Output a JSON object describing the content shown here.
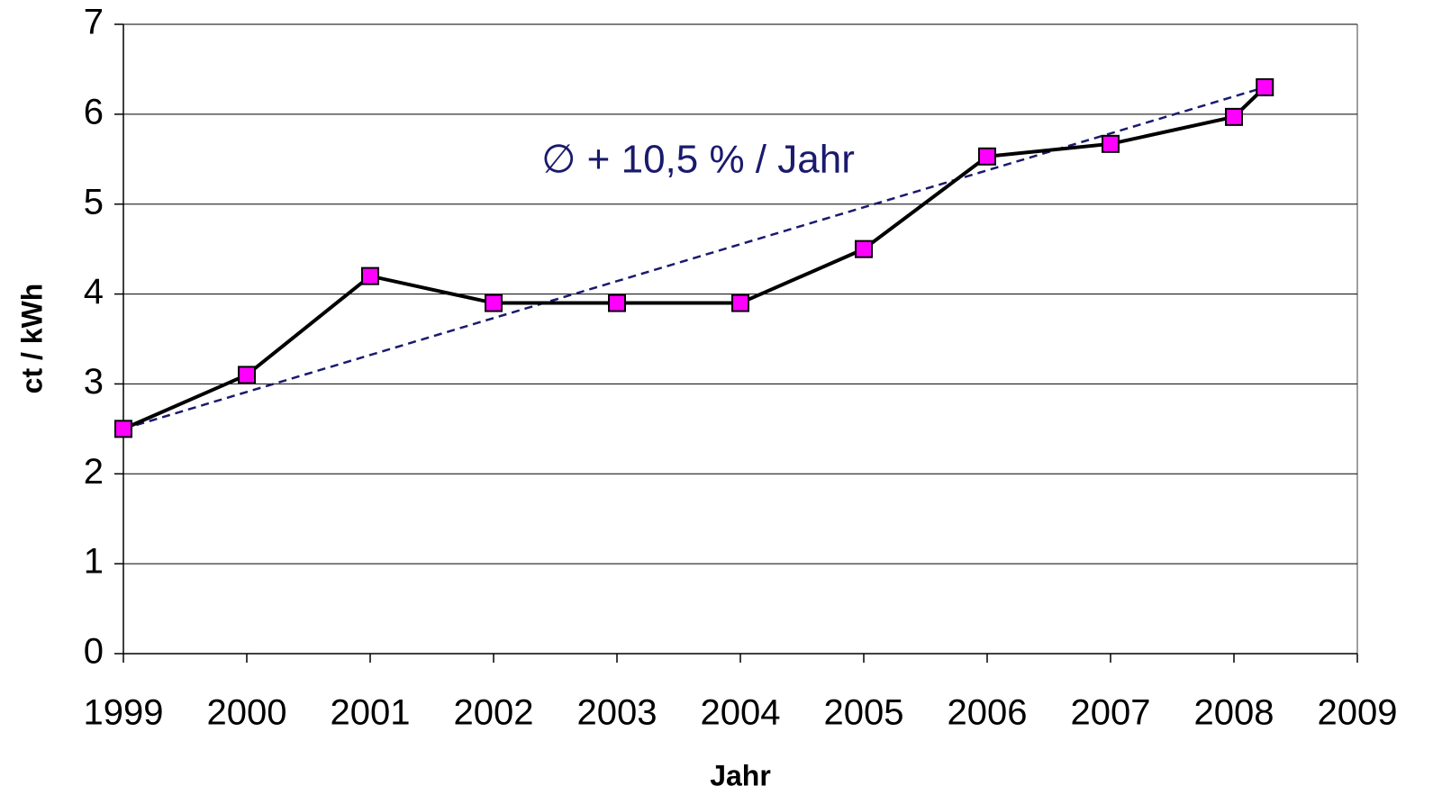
{
  "chart_data": {
    "type": "line",
    "x_label": "Jahr",
    "y_label": "ct / kWh",
    "annotation": "∅ + 10,5 % / Jahr",
    "series": [
      {
        "color": "#000000",
        "marker_color": "#ff00ff",
        "style": "solid",
        "marker": "square",
        "x": [
          1999,
          2000,
          2001,
          2002,
          2003,
          2004,
          2005,
          2006,
          2007,
          2008,
          2008.25
        ],
        "values": [
          2.5,
          3.1,
          4.2,
          3.9,
          3.9,
          3.9,
          4.5,
          5.53,
          5.67,
          5.97,
          6.3
        ]
      },
      {
        "color": "#1a1a6e",
        "style": "dashed",
        "marker": "none",
        "x": [
          1999,
          2008.25
        ],
        "values": [
          2.5,
          6.3
        ]
      }
    ],
    "xlim": [
      1999,
      2009
    ],
    "xticks": [
      1999,
      2000,
      2001,
      2002,
      2003,
      2004,
      2005,
      2006,
      2007,
      2008,
      2009
    ],
    "ylim": [
      0,
      7
    ],
    "yticks": [
      0,
      1,
      2,
      3,
      4,
      5,
      6,
      7
    ],
    "grid": true
  }
}
